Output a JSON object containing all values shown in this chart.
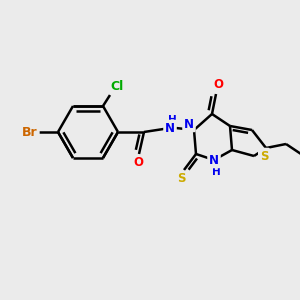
{
  "background_color": "#ebebeb",
  "bond_color": "#000000",
  "bond_width": 1.8,
  "font_size": 8.5,
  "figsize": [
    3.0,
    3.0
  ],
  "dpi": 100,
  "colors": {
    "Br": "#cc6600",
    "Cl": "#00aa00",
    "O": "#ff0000",
    "N": "#0000ee",
    "S": "#ccaa00",
    "C": "#000000"
  }
}
